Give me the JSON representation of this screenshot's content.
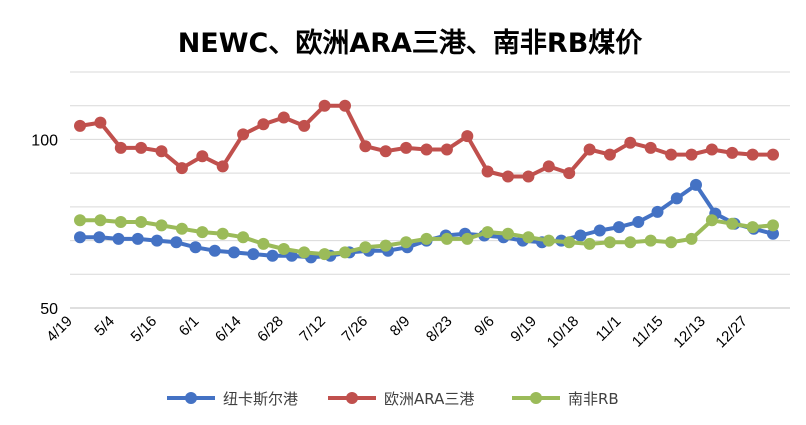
{
  "chart_data": {
    "type": "line",
    "title": "NEWC、欧洲ARA三港、南非RB煤价",
    "xlabel": "",
    "ylabel": "",
    "ylim": [
      50,
      120
    ],
    "yticks": [
      50,
      100
    ],
    "grid": "horizontal",
    "legend": "bottom",
    "x_tick_labels": [
      "4/19",
      "5/4",
      "5/16",
      "6/1",
      "6/14",
      "6/28",
      "7/12",
      "7/26",
      "8/9",
      "8/23",
      "9/6",
      "9/19",
      "10/18",
      "11/1",
      "11/15",
      "12/13",
      "12/27"
    ],
    "series": [
      {
        "name": "纽卡斯尔港",
        "color": "#4472C4",
        "values": [
          71,
          71,
          70.5,
          70.5,
          70,
          69.5,
          68,
          67,
          66.5,
          66,
          65.5,
          65.5,
          65,
          65.5,
          66.5,
          67,
          67,
          68,
          70,
          71.5,
          72,
          71.5,
          71,
          70,
          69.5,
          70,
          71.5,
          73,
          74,
          75.5,
          78.5,
          82.5,
          86.5,
          78,
          75,
          73.5,
          72
        ]
      },
      {
        "name": "欧洲ARA三港",
        "color": "#C0504D",
        "values": [
          104,
          105,
          97.5,
          97.5,
          96.5,
          91.5,
          95,
          92,
          101.5,
          104.5,
          106.5,
          104,
          110,
          110,
          98,
          96.5,
          97.5,
          97,
          97,
          101,
          90.5,
          89,
          89,
          92,
          90,
          97,
          95.5,
          99,
          97.5,
          95.5,
          95.5,
          97,
          96,
          95.5,
          95.5
        ]
      },
      {
        "name": "南非RB",
        "color": "#9BBB59",
        "values": [
          76,
          76,
          75.5,
          75.5,
          74.5,
          73.5,
          72.5,
          72,
          71,
          69,
          67.5,
          66.5,
          66,
          66.5,
          68,
          68.5,
          69.5,
          70.5,
          70.5,
          70.5,
          72.5,
          72,
          71,
          70,
          69.5,
          69,
          69.5,
          69.5,
          70,
          69.5,
          70.5,
          76,
          75,
          74,
          74.5
        ]
      }
    ]
  }
}
